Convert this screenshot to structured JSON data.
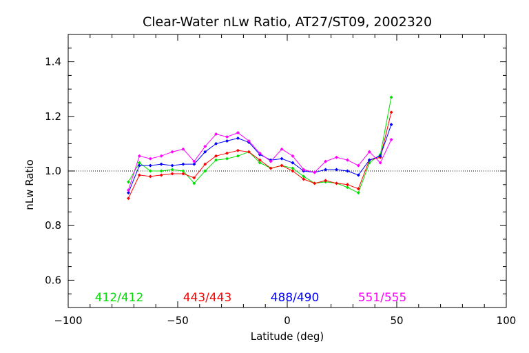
{
  "chart_data": {
    "type": "line",
    "title": "Clear-Water nLw Ratio, AT27/ST09, 2002320",
    "xlabel": "Latitude (deg)",
    "ylabel": "nLw Ratio",
    "xlim": [
      -100,
      100
    ],
    "ylim": [
      0.5,
      1.5
    ],
    "xticks": [
      -100,
      -50,
      0,
      50,
      100
    ],
    "yticks": [
      0.6,
      0.8,
      1.0,
      1.2,
      1.4
    ],
    "xtick_labels": [
      "−100",
      "−50",
      "0",
      "50",
      "100"
    ],
    "ytick_labels": [
      "0.6",
      "0.8",
      "1.0",
      "1.2",
      "1.4"
    ],
    "reference_line": 1.0,
    "grid": false,
    "legend_position": "bottom",
    "x": [
      -72.5,
      -67.5,
      -62.5,
      -57.5,
      -52.5,
      -47.5,
      -42.5,
      -37.5,
      -32.5,
      -27.5,
      -22.5,
      -17.5,
      -12.5,
      -7.5,
      -2.5,
      2.5,
      7.5,
      12.5,
      17.5,
      22.5,
      27.5,
      32.5,
      37.5,
      42.5,
      47.5
    ],
    "series": [
      {
        "name": "412/412",
        "color": "#00e000",
        "values": [
          0.96,
          1.03,
          1.0,
          1.0,
          1.005,
          1.0,
          0.955,
          1.0,
          1.04,
          1.045,
          1.055,
          1.07,
          1.03,
          1.01,
          1.02,
          1.01,
          0.98,
          0.955,
          0.96,
          0.955,
          0.94,
          0.92,
          1.03,
          1.06,
          1.27
        ]
      },
      {
        "name": "443/443",
        "color": "#ff0000",
        "values": [
          0.9,
          0.985,
          0.98,
          0.985,
          0.99,
          0.99,
          0.975,
          1.025,
          1.055,
          1.065,
          1.075,
          1.07,
          1.04,
          1.01,
          1.02,
          1.0,
          0.97,
          0.955,
          0.965,
          0.955,
          0.95,
          0.935,
          1.04,
          1.05,
          1.215
        ]
      },
      {
        "name": "488/490",
        "color": "#0000ff",
        "values": [
          0.92,
          1.02,
          1.02,
          1.025,
          1.02,
          1.025,
          1.025,
          1.07,
          1.1,
          1.11,
          1.12,
          1.105,
          1.06,
          1.04,
          1.045,
          1.03,
          1.0,
          0.995,
          1.005,
          1.005,
          1.0,
          0.985,
          1.04,
          1.055,
          1.17
        ]
      },
      {
        "name": "551/555",
        "color": "#ff00ff",
        "values": [
          0.93,
          1.055,
          1.045,
          1.055,
          1.07,
          1.08,
          1.035,
          1.09,
          1.135,
          1.125,
          1.14,
          1.11,
          1.065,
          1.035,
          1.08,
          1.055,
          1.005,
          0.995,
          1.035,
          1.05,
          1.04,
          1.02,
          1.07,
          1.03,
          1.115
        ]
      }
    ]
  }
}
